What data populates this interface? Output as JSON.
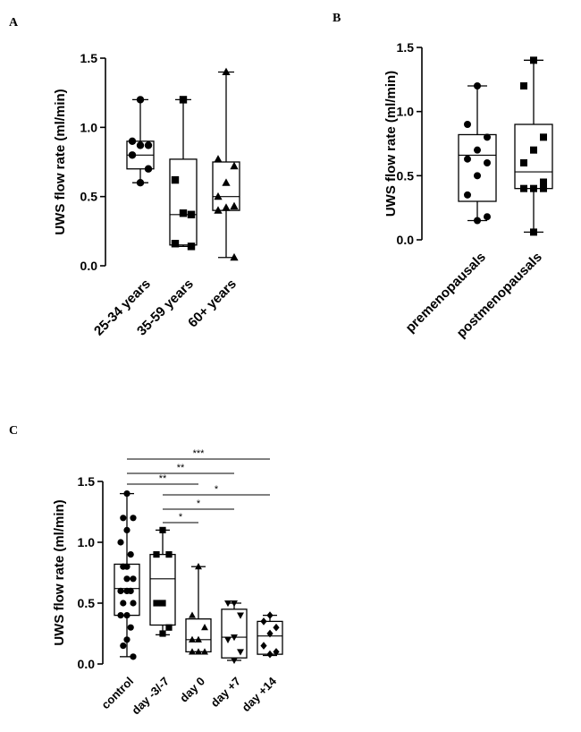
{
  "chart_data": [
    {
      "panel": "A",
      "type": "boxplot",
      "ylabel": "UWS flow rate (ml/min)",
      "ylim": [
        0,
        1.5
      ],
      "yticks": [
        "0.0",
        "0.5",
        "1.0",
        "1.5"
      ],
      "categories": [
        "25-34 years",
        "35-59 years",
        "60+ years"
      ],
      "markers": [
        "circle",
        "square",
        "triangle"
      ],
      "groups": [
        {
          "name": "25-34 years",
          "whisker_low": 0.6,
          "q1": 0.7,
          "median": 0.8,
          "q3": 0.9,
          "whisker_high": 1.2,
          "points": [
            1.2,
            0.9,
            0.87,
            0.87,
            0.8,
            0.7,
            0.6
          ]
        },
        {
          "name": "35-59 years",
          "whisker_low": 0.14,
          "q1": 0.15,
          "median": 0.37,
          "q3": 0.77,
          "whisker_high": 1.2,
          "points": [
            1.2,
            0.62,
            0.37,
            0.38,
            0.16,
            0.14
          ]
        },
        {
          "name": "60+ years",
          "whisker_low": 0.06,
          "q1": 0.4,
          "median": 0.5,
          "q3": 0.75,
          "whisker_high": 1.4,
          "points": [
            1.4,
            0.77,
            0.72,
            0.6,
            0.5,
            0.43,
            0.42,
            0.4,
            0.06
          ]
        }
      ]
    },
    {
      "panel": "B",
      "type": "boxplot",
      "ylabel": "UWS flow rate (ml/min)",
      "ylim": [
        0,
        1.5
      ],
      "yticks": [
        "0.0",
        "0.5",
        "1.0",
        "1.5"
      ],
      "categories": [
        "premenopausals",
        "postmenopausals"
      ],
      "markers": [
        "circle",
        "square"
      ],
      "groups": [
        {
          "name": "premenopausals",
          "whisker_low": 0.15,
          "q1": 0.3,
          "median": 0.66,
          "q3": 0.82,
          "whisker_high": 1.2,
          "points": [
            1.2,
            0.9,
            0.8,
            0.7,
            0.63,
            0.6,
            0.5,
            0.35,
            0.18,
            0.15
          ]
        },
        {
          "name": "postmenopausals",
          "whisker_low": 0.06,
          "q1": 0.4,
          "median": 0.53,
          "q3": 0.9,
          "whisker_high": 1.4,
          "points": [
            1.4,
            1.2,
            0.8,
            0.7,
            0.6,
            0.45,
            0.4,
            0.4,
            0.4,
            0.06
          ]
        }
      ]
    },
    {
      "panel": "C",
      "type": "boxplot",
      "ylabel": "UWS flow rate (ml/min)",
      "ylim": [
        0,
        1.5
      ],
      "yticks": [
        "0.0",
        "0.5",
        "1.0",
        "1.5"
      ],
      "categories": [
        "control",
        "day -3/-7",
        "day 0",
        "day +7",
        "day +14"
      ],
      "markers": [
        "circle",
        "square",
        "triangle",
        "triangle-down",
        "diamond"
      ],
      "groups": [
        {
          "name": "control",
          "whisker_low": 0.06,
          "q1": 0.4,
          "median": 0.62,
          "q3": 0.82,
          "whisker_high": 1.4,
          "points": [
            1.4,
            1.2,
            1.2,
            1.1,
            1.0,
            0.9,
            0.8,
            0.8,
            0.7,
            0.7,
            0.6,
            0.6,
            0.6,
            0.5,
            0.5,
            0.4,
            0.4,
            0.3,
            0.2,
            0.15,
            0.06
          ]
        },
        {
          "name": "day -3/-7",
          "whisker_low": 0.24,
          "q1": 0.32,
          "median": 0.7,
          "q3": 0.9,
          "whisker_high": 1.1,
          "points": [
            1.1,
            0.9,
            0.9,
            0.5,
            0.5,
            0.3,
            0.25
          ]
        },
        {
          "name": "day 0",
          "whisker_low": 0.1,
          "q1": 0.1,
          "median": 0.2,
          "q3": 0.37,
          "whisker_high": 0.8,
          "points": [
            0.8,
            0.4,
            0.3,
            0.2,
            0.2,
            0.1,
            0.1,
            0.1
          ]
        },
        {
          "name": "day +7",
          "whisker_low": 0.03,
          "q1": 0.05,
          "median": 0.22,
          "q3": 0.45,
          "whisker_high": 0.5,
          "points": [
            0.5,
            0.5,
            0.4,
            0.22,
            0.2,
            0.1,
            0.03
          ]
        },
        {
          "name": "day +14",
          "whisker_low": 0.07,
          "q1": 0.08,
          "median": 0.23,
          "q3": 0.35,
          "whisker_high": 0.4,
          "points": [
            0.4,
            0.35,
            0.3,
            0.25,
            0.15,
            0.1,
            0.08
          ]
        }
      ],
      "significance": [
        {
          "from": "control",
          "to": "day +14",
          "label": "***"
        },
        {
          "from": "control",
          "to": "day +7",
          "label": "**"
        },
        {
          "from": "control",
          "to": "day 0",
          "label": "**"
        },
        {
          "from": "day -3/-7",
          "to": "day +14",
          "label": "*"
        },
        {
          "from": "day -3/-7",
          "to": "day +7",
          "label": "*"
        },
        {
          "from": "day -3/-7",
          "to": "day 0",
          "label": "*"
        }
      ]
    }
  ]
}
